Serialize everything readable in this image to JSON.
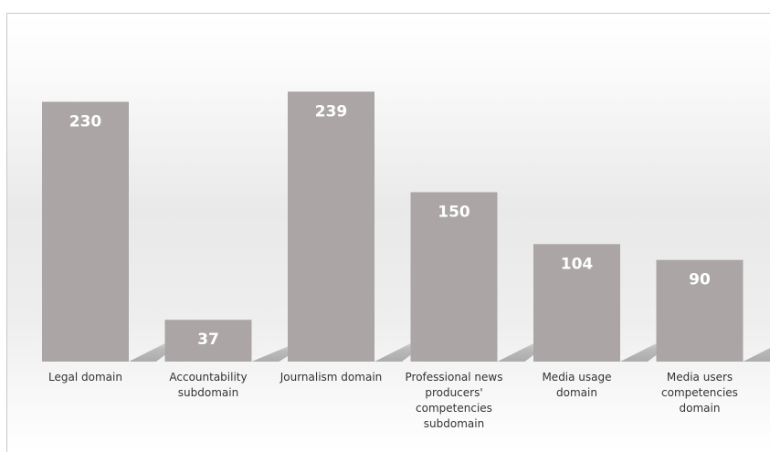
{
  "chart_data": {
    "type": "bar",
    "categories": [
      "Legal domain",
      "Accountability subdomain",
      "Journalism domain",
      "Professional news producers' competencies subdomain",
      "Media usage domain",
      "Media users competencies domain"
    ],
    "category_lines": [
      [
        "Legal domain"
      ],
      [
        "Accountability",
        "subdomain"
      ],
      [
        "Journalism domain"
      ],
      [
        "Professional news",
        "producers'",
        "competencies",
        "subdomain"
      ],
      [
        "Media usage",
        "domain"
      ],
      [
        "Media users",
        "competencies",
        "domain"
      ]
    ],
    "values": [
      230,
      37,
      239,
      150,
      104,
      90
    ],
    "ylim": [
      0,
      250
    ],
    "grid": false,
    "legend": "none",
    "title": "",
    "xlabel": "",
    "ylabel": "",
    "colors": {
      "bar": "#aba5a5",
      "shadow": "#bdbdbd",
      "value_label": "#ffffff",
      "category_label": "#333333"
    }
  }
}
